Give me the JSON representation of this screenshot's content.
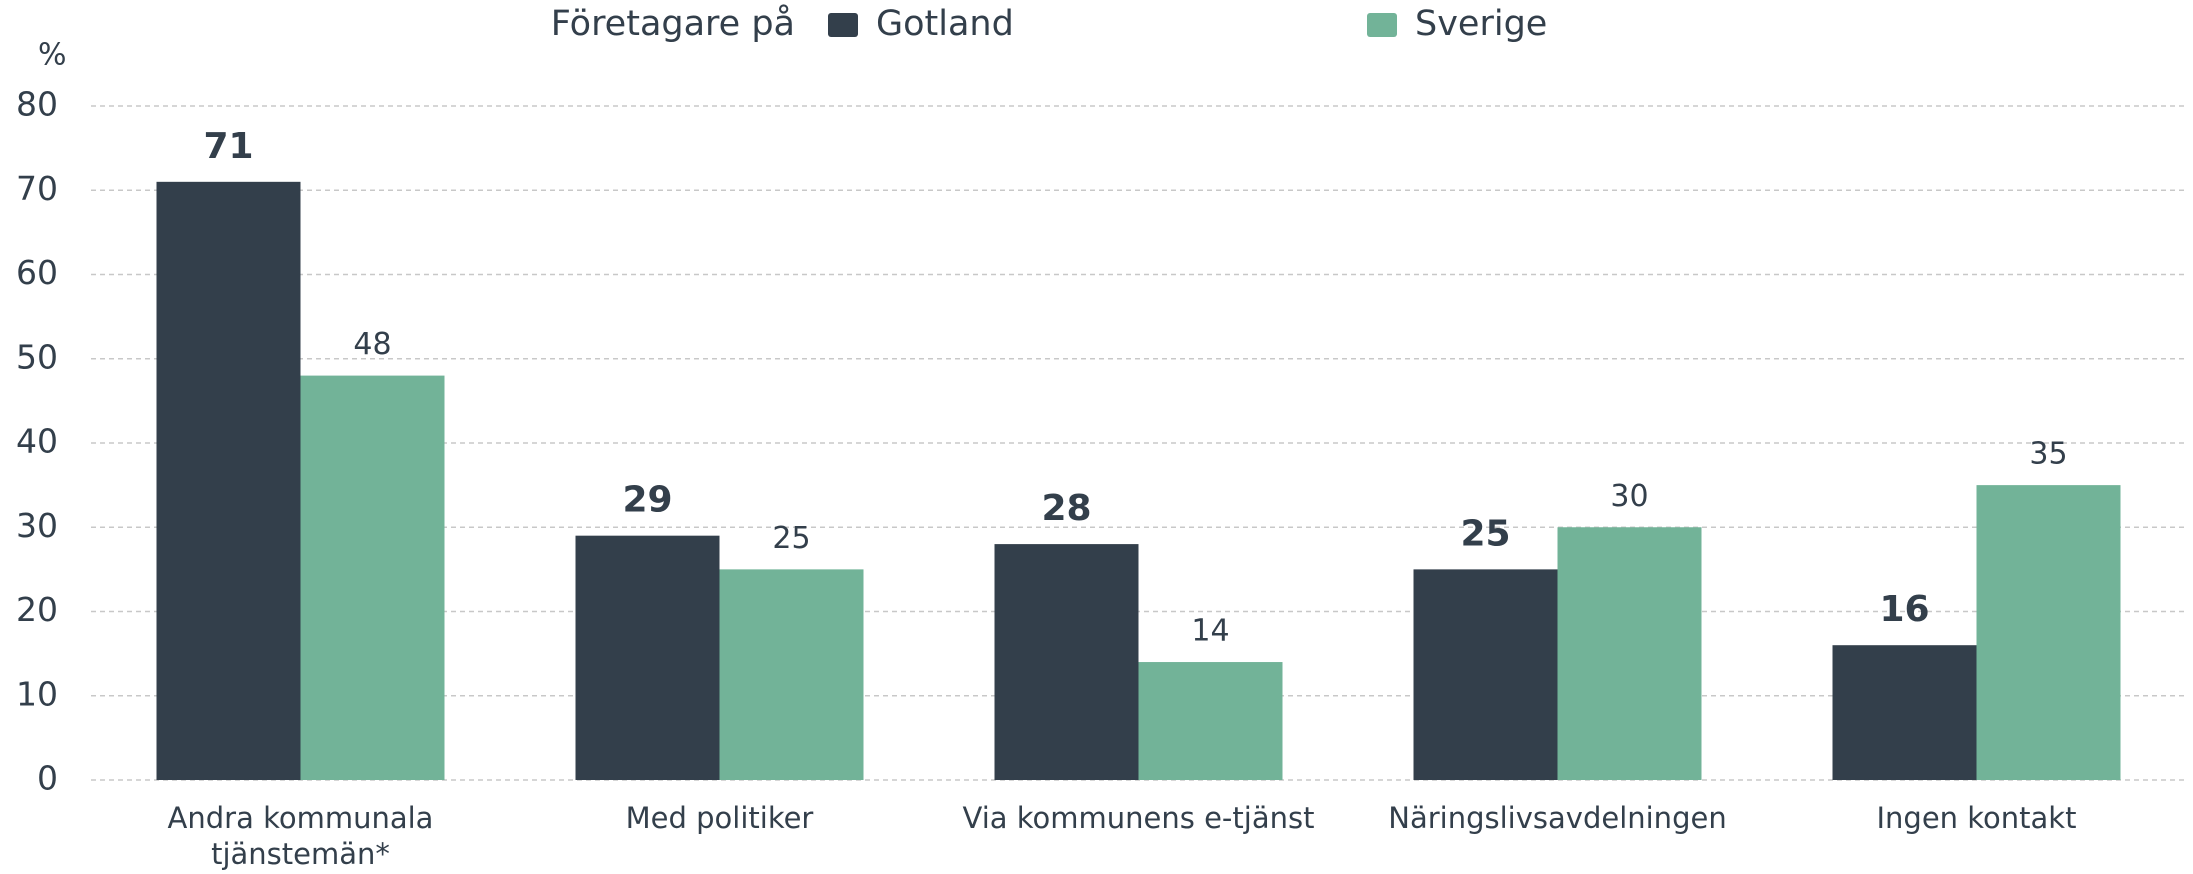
{
  "chart_data": {
    "type": "bar",
    "legend_title": "Företagare på",
    "y_unit": "%",
    "categories": [
      "Andra kommunala tjänstemän*",
      "Med politiker",
      "Via kommunens e-tjänst",
      "Näringslivsavdelningen",
      "Ingen kontakt"
    ],
    "series": [
      {
        "name": "Gotland",
        "color": "#333f4b",
        "values": [
          71,
          29,
          28,
          25,
          16
        ]
      },
      {
        "name": "Sverige",
        "color": "#72b398",
        "values": [
          48,
          25,
          14,
          30,
          35
        ]
      }
    ],
    "ylim": [
      0,
      80
    ],
    "yticks": [
      0,
      10,
      20,
      30,
      40,
      50,
      60,
      70,
      80
    ],
    "grid": true,
    "legend": "top"
  }
}
